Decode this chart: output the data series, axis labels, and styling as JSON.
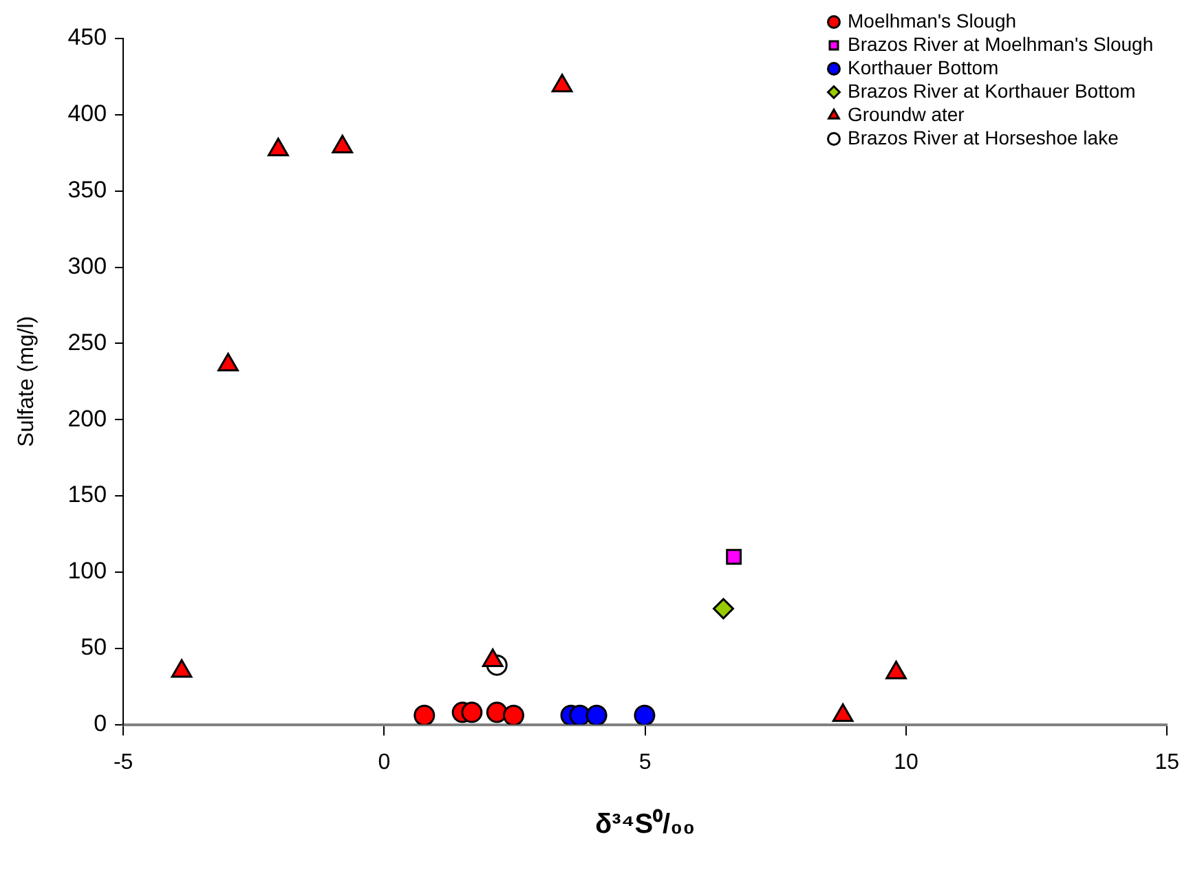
{
  "chart_data": {
    "type": "scatter",
    "xlabel": "δ³⁴S⁰/₀₀",
    "ylabel": "Sulfate (mg/l)",
    "xlim": [
      -5,
      15
    ],
    "xticks": [
      -5,
      0,
      5,
      10,
      15
    ],
    "ylim": [
      0,
      450
    ],
    "yticks": [
      0,
      50,
      100,
      150,
      200,
      250,
      300,
      350,
      400,
      450
    ],
    "grid": false,
    "legend": "top right",
    "series": [
      {
        "name": "Moelhman's Slough",
        "color": "#ff0000",
        "marker": "circle",
        "x": [
          0.77,
          1.5,
          1.68,
          2.16,
          2.48
        ],
        "values": [
          6,
          8,
          8,
          8,
          6
        ]
      },
      {
        "name": "Brazos River at Moelhman's Slough",
        "color": "#ff00ff",
        "marker": "square",
        "x": [
          6.7
        ],
        "values": [
          110
        ]
      },
      {
        "name": "Korthauer Bottom",
        "color": "#0000ff",
        "marker": "circle",
        "x": [
          3.58,
          3.75,
          4.07,
          4.99
        ],
        "values": [
          6,
          6,
          6,
          6
        ]
      },
      {
        "name": "Brazos River at Korthauer Bottom",
        "color": "#99cc00",
        "marker": "diamond",
        "x": [
          6.5
        ],
        "values": [
          76
        ]
      },
      {
        "name": "Groundw ater",
        "color": "#ff0000",
        "marker": "triangle",
        "x": [
          -3.88,
          -2.99,
          -2.03,
          -0.8,
          2.08,
          3.41,
          8.79,
          9.81
        ],
        "values": [
          35,
          236,
          377,
          379,
          42,
          419,
          6,
          34
        ]
      },
      {
        "name": "Brazos River at Horseshoe lake",
        "color": "#ffffff",
        "marker": "circle",
        "x": [
          2.16
        ],
        "values": [
          39
        ]
      }
    ]
  }
}
